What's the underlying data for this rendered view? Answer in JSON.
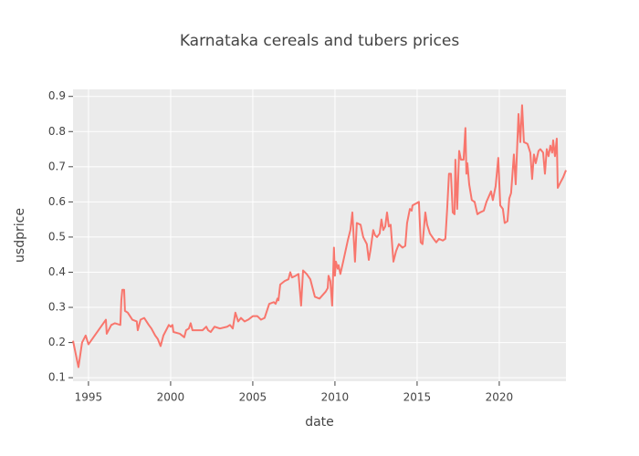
{
  "chart_data": {
    "type": "line",
    "title": "Karnataka cereals and tubers prices",
    "x_label": "date",
    "y_label": "usdprice",
    "color": "#f8766d",
    "grid": true,
    "xlim": [
      1994.06,
      2024.06
    ],
    "xticks": [
      1995,
      2000,
      2005,
      2010,
      2015,
      2020
    ],
    "ylim": [
      0.09,
      0.92
    ],
    "yticks": [
      0.1,
      0.2,
      0.3,
      0.4,
      0.5,
      0.6,
      0.7,
      0.8,
      0.9
    ],
    "x": [
      1994.06,
      1994.39,
      1994.61,
      1994.83,
      1995.0,
      1996.06,
      1996.11,
      1996.39,
      1996.61,
      1996.94,
      1997.0,
      1997.06,
      1997.17,
      1997.22,
      1997.39,
      1997.67,
      1997.94,
      1998.0,
      1998.17,
      1998.39,
      1998.67,
      1998.83,
      1999.06,
      1999.22,
      1999.39,
      1999.56,
      1999.78,
      1999.89,
      2000.0,
      2000.11,
      2000.17,
      2000.56,
      2000.83,
      2000.94,
      2001.11,
      2001.22,
      2001.33,
      2001.94,
      2002.17,
      2002.28,
      2002.44,
      2002.67,
      2003.0,
      2003.44,
      2003.61,
      2003.78,
      2003.94,
      2004.11,
      2004.28,
      2004.5,
      2004.72,
      2005.0,
      2005.28,
      2005.5,
      2005.72,
      2006.0,
      2006.28,
      2006.39,
      2006.5,
      2006.56,
      2006.67,
      2006.94,
      2007.17,
      2007.28,
      2007.39,
      2007.61,
      2007.78,
      2007.94,
      2008.06,
      2008.28,
      2008.5,
      2008.78,
      2009.06,
      2009.44,
      2009.56,
      2009.61,
      2009.72,
      2009.83,
      2009.94,
      2010.0,
      2010.06,
      2010.17,
      2010.22,
      2010.33,
      2010.5,
      2010.78,
      2010.94,
      2011.06,
      2011.22,
      2011.33,
      2011.56,
      2011.72,
      2011.94,
      2012.06,
      2012.17,
      2012.33,
      2012.44,
      2012.56,
      2012.72,
      2012.83,
      2012.94,
      2013.06,
      2013.17,
      2013.28,
      2013.39,
      2013.56,
      2013.72,
      2013.89,
      2014.11,
      2014.28,
      2014.39,
      2014.56,
      2014.67,
      2014.72,
      2015.11,
      2015.22,
      2015.33,
      2015.5,
      2015.61,
      2015.78,
      2016.0,
      2016.17,
      2016.33,
      2016.56,
      2016.72,
      2016.83,
      2016.94,
      2017.06,
      2017.17,
      2017.28,
      2017.33,
      2017.44,
      2017.56,
      2017.67,
      2017.83,
      2017.94,
      2018.0,
      2018.06,
      2018.17,
      2018.33,
      2018.5,
      2018.67,
      2018.83,
      2019.06,
      2019.22,
      2019.5,
      2019.61,
      2019.78,
      2019.94,
      2020.06,
      2020.22,
      2020.33,
      2020.5,
      2020.61,
      2020.72,
      2020.89,
      2021.0,
      2021.17,
      2021.28,
      2021.39,
      2021.5,
      2021.72,
      2021.89,
      2022.0,
      2022.11,
      2022.22,
      2022.39,
      2022.5,
      2022.67,
      2022.78,
      2022.89,
      2023.0,
      2023.11,
      2023.22,
      2023.28,
      2023.39,
      2023.5,
      2023.56,
      2023.72,
      2023.89,
      2024.06
    ],
    "values": [
      0.205,
      0.13,
      0.2,
      0.22,
      0.195,
      0.265,
      0.225,
      0.25,
      0.255,
      0.25,
      0.32,
      0.35,
      0.35,
      0.29,
      0.285,
      0.265,
      0.26,
      0.235,
      0.265,
      0.27,
      0.25,
      0.24,
      0.22,
      0.21,
      0.19,
      0.22,
      0.24,
      0.25,
      0.245,
      0.25,
      0.23,
      0.225,
      0.215,
      0.235,
      0.24,
      0.255,
      0.235,
      0.235,
      0.245,
      0.235,
      0.23,
      0.245,
      0.24,
      0.245,
      0.25,
      0.24,
      0.285,
      0.26,
      0.27,
      0.26,
      0.265,
      0.275,
      0.275,
      0.265,
      0.27,
      0.31,
      0.315,
      0.31,
      0.325,
      0.32,
      0.365,
      0.375,
      0.38,
      0.4,
      0.385,
      0.39,
      0.395,
      0.305,
      0.405,
      0.395,
      0.38,
      0.33,
      0.325,
      0.345,
      0.355,
      0.39,
      0.375,
      0.305,
      0.47,
      0.39,
      0.43,
      0.41,
      0.42,
      0.395,
      0.43,
      0.49,
      0.52,
      0.57,
      0.43,
      0.54,
      0.535,
      0.5,
      0.48,
      0.435,
      0.465,
      0.52,
      0.505,
      0.5,
      0.51,
      0.55,
      0.52,
      0.53,
      0.57,
      0.53,
      0.535,
      0.43,
      0.46,
      0.48,
      0.47,
      0.475,
      0.54,
      0.58,
      0.575,
      0.59,
      0.6,
      0.485,
      0.48,
      0.57,
      0.535,
      0.51,
      0.495,
      0.485,
      0.495,
      0.49,
      0.495,
      0.58,
      0.68,
      0.68,
      0.57,
      0.565,
      0.72,
      0.58,
      0.745,
      0.72,
      0.72,
      0.81,
      0.68,
      0.71,
      0.65,
      0.605,
      0.6,
      0.565,
      0.57,
      0.575,
      0.6,
      0.63,
      0.605,
      0.645,
      0.725,
      0.59,
      0.58,
      0.54,
      0.545,
      0.61,
      0.625,
      0.735,
      0.65,
      0.85,
      0.77,
      0.875,
      0.77,
      0.765,
      0.74,
      0.665,
      0.735,
      0.71,
      0.745,
      0.75,
      0.74,
      0.68,
      0.75,
      0.73,
      0.76,
      0.74,
      0.775,
      0.73,
      0.78,
      0.64,
      0.655,
      0.67,
      0.69
    ]
  }
}
